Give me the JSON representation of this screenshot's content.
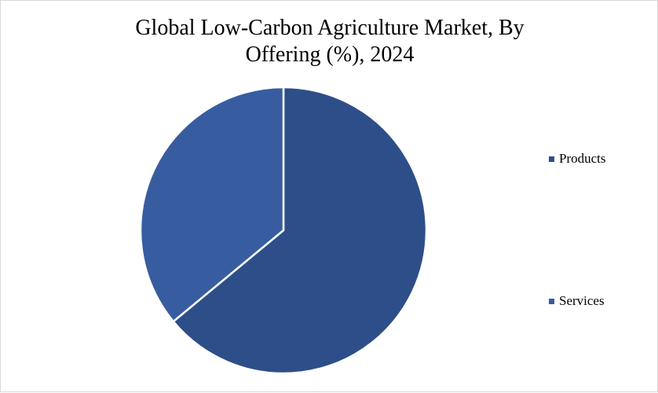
{
  "chart_data": {
    "type": "pie",
    "title_lines": [
      "Global Low-Carbon Agriculture Market, By",
      "Offering (%), 2024"
    ],
    "series": [
      {
        "name": "Products",
        "value": 64,
        "color": "#2e4e89"
      },
      {
        "name": "Services",
        "value": 36,
        "color": "#375da0"
      }
    ],
    "legend_position": "right"
  }
}
